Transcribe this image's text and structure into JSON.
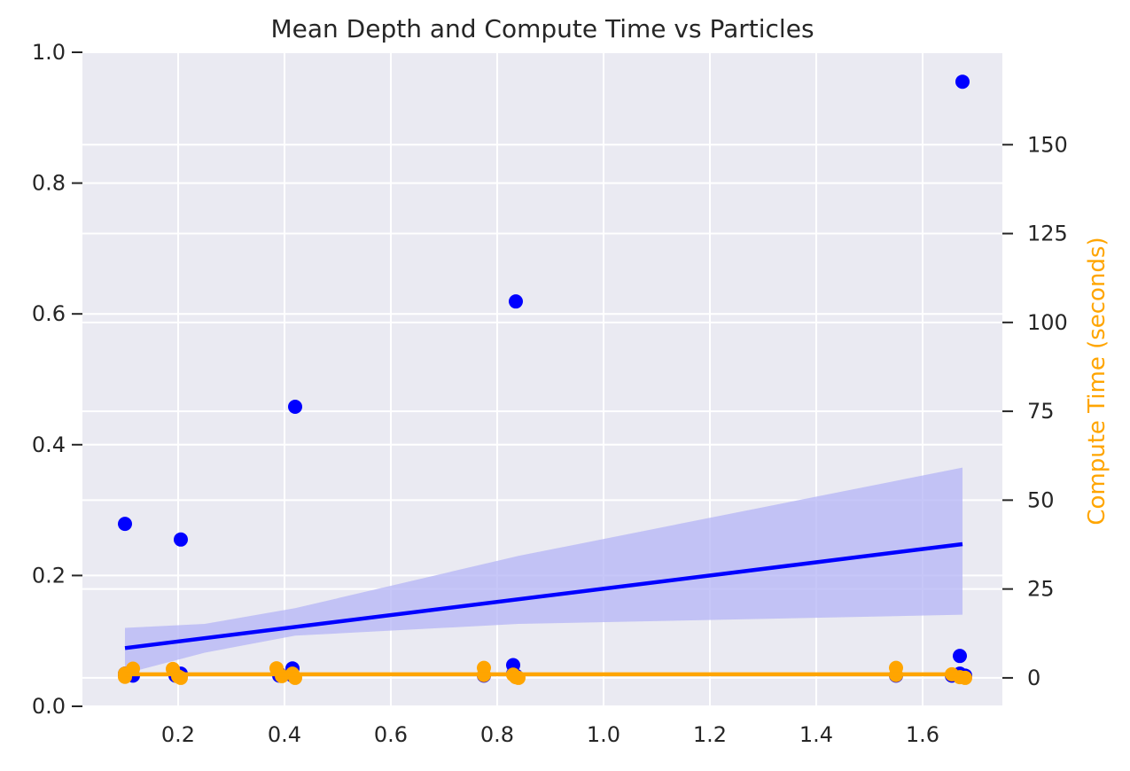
{
  "chart_data": {
    "type": "scatter",
    "title": "Mean Depth and Compute Time vs Particles",
    "xlabel": "",
    "ylabel_left": "",
    "ylabel_right": "Compute Time (seconds)",
    "xlim": [
      0.02,
      1.75
    ],
    "ylim_left": [
      0.0,
      1.0
    ],
    "ylim_right": [
      -8,
      176
    ],
    "x_ticks": [
      0.2,
      0.4,
      0.6,
      0.8,
      1.0,
      1.2,
      1.4,
      1.6
    ],
    "x_tick_labels": [
      "0.2",
      "0.4",
      "0.6",
      "0.8",
      "1.0",
      "1.2",
      "1.4",
      "1.6"
    ],
    "y_left_ticks": [
      0.0,
      0.2,
      0.4,
      0.6,
      0.8,
      1.0
    ],
    "y_left_tick_labels": [
      "0.0",
      "0.2",
      "0.4",
      "0.6",
      "0.8",
      "1.0"
    ],
    "y_right_ticks": [
      0,
      25,
      50,
      75,
      100,
      125,
      150
    ],
    "y_right_tick_labels": [
      "0",
      "25",
      "50",
      "75",
      "100",
      "125",
      "150"
    ],
    "grid": true,
    "colors": {
      "plot_bg": "#eaeaf2",
      "grid": "#ffffff",
      "depth": "#0000ff",
      "depth_ci": "#b4b4f5",
      "compute": "#ffa500",
      "right_label": "#ffa500",
      "text": "#262626"
    },
    "series": [
      {
        "axis": "left",
        "points": [
          {
            "x": 0.1,
            "y": 0.279
          },
          {
            "x": 0.1,
            "y": 0.05
          },
          {
            "x": 0.1,
            "y": 0.047
          },
          {
            "x": 0.115,
            "y": 0.047
          },
          {
            "x": 0.195,
            "y": 0.05
          },
          {
            "x": 0.195,
            "y": 0.047
          },
          {
            "x": 0.205,
            "y": 0.255
          },
          {
            "x": 0.205,
            "y": 0.05
          },
          {
            "x": 0.205,
            "y": 0.047
          },
          {
            "x": 0.39,
            "y": 0.05
          },
          {
            "x": 0.39,
            "y": 0.047
          },
          {
            "x": 0.415,
            "y": 0.058
          },
          {
            "x": 0.415,
            "y": 0.047
          },
          {
            "x": 0.42,
            "y": 0.458
          },
          {
            "x": 0.775,
            "y": 0.047
          },
          {
            "x": 0.83,
            "y": 0.05
          },
          {
            "x": 0.83,
            "y": 0.063
          },
          {
            "x": 0.835,
            "y": 0.619
          },
          {
            "x": 0.835,
            "y": 0.047
          },
          {
            "x": 1.55,
            "y": 0.047
          },
          {
            "x": 1.655,
            "y": 0.047
          },
          {
            "x": 1.67,
            "y": 0.077
          },
          {
            "x": 1.67,
            "y": 0.05
          },
          {
            "x": 1.675,
            "y": 0.955
          },
          {
            "x": 1.68,
            "y": 0.047
          }
        ],
        "trend": {
          "x": [
            0.1,
            1.675
          ],
          "y": [
            0.089,
            0.248
          ]
        },
        "ci": {
          "x": [
            0.1,
            0.25,
            0.42,
            0.84,
            1.675
          ],
          "lower": [
            0.05,
            0.082,
            0.108,
            0.126,
            0.14
          ],
          "upper": [
            0.12,
            0.126,
            0.15,
            0.23,
            0.365
          ]
        }
      },
      {
        "axis": "right",
        "points": [
          {
            "x": 0.1,
            "y": 0.3
          },
          {
            "x": 0.1,
            "y": 1.2
          },
          {
            "x": 0.115,
            "y": 2.6
          },
          {
            "x": 0.19,
            "y": 2.5
          },
          {
            "x": 0.2,
            "y": 0.4
          },
          {
            "x": 0.205,
            "y": 0.0
          },
          {
            "x": 0.385,
            "y": 2.7
          },
          {
            "x": 0.395,
            "y": 0.5
          },
          {
            "x": 0.415,
            "y": 1.2
          },
          {
            "x": 0.42,
            "y": 0.0
          },
          {
            "x": 0.775,
            "y": 2.8
          },
          {
            "x": 0.775,
            "y": 0.8
          },
          {
            "x": 0.83,
            "y": 0.9
          },
          {
            "x": 0.835,
            "y": 0.2
          },
          {
            "x": 0.84,
            "y": 0.0
          },
          {
            "x": 1.55,
            "y": 2.8
          },
          {
            "x": 1.55,
            "y": 0.8
          },
          {
            "x": 1.655,
            "y": 1.0
          },
          {
            "x": 1.67,
            "y": 0.2
          },
          {
            "x": 1.68,
            "y": 0.0
          }
        ],
        "trend": {
          "x": [
            0.1,
            1.675
          ],
          "y": [
            1.0,
            1.0
          ]
        }
      }
    ]
  }
}
